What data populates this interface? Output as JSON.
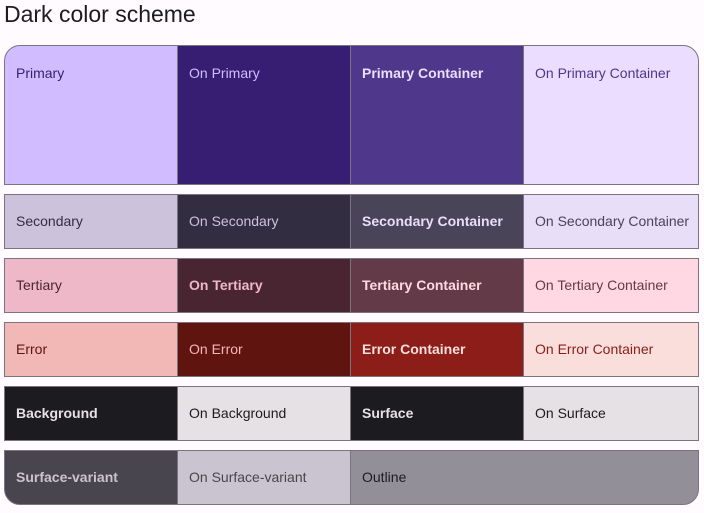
{
  "title": "Dark color scheme",
  "rows": [
    {
      "cells": [
        {
          "label": "Primary",
          "bg": "#d0bcff",
          "fg": "#381e72"
        },
        {
          "label": "On Primary",
          "bg": "#381e72",
          "fg": "#d0bcff"
        },
        {
          "label": "Primary Container",
          "bg": "#4f378b",
          "fg": "#eaddff"
        },
        {
          "label": "On Primary Container",
          "bg": "#eaddff",
          "fg": "#4f378b"
        }
      ]
    },
    {
      "cells": [
        {
          "label": "Secondary",
          "bg": "#ccc2dc",
          "fg": "#332d41"
        },
        {
          "label": "On Secondary",
          "bg": "#332d41",
          "fg": "#ccc2dc"
        },
        {
          "label": "Secondary Container",
          "bg": "#4a4458",
          "fg": "#e8def8"
        },
        {
          "label": "On Secondary Container",
          "bg": "#e8def8",
          "fg": "#4a4458"
        }
      ]
    },
    {
      "cells": [
        {
          "label": "Tertiary",
          "bg": "#efb8c8",
          "fg": "#492532"
        },
        {
          "label": "On Tertiary",
          "bg": "#492532",
          "fg": "#efb8c8"
        },
        {
          "label": "Tertiary Container",
          "bg": "#633b48",
          "fg": "#ffd8e4"
        },
        {
          "label": "On Tertiary Container",
          "bg": "#ffd8e4",
          "fg": "#633b48"
        }
      ]
    },
    {
      "cells": [
        {
          "label": "Error",
          "bg": "#f2b8b5",
          "fg": "#601410"
        },
        {
          "label": "On Error",
          "bg": "#601410",
          "fg": "#f2b8b5"
        },
        {
          "label": "Error Container",
          "bg": "#8c1d18",
          "fg": "#f9dedc"
        },
        {
          "label": "On Error Container",
          "bg": "#f9dedc",
          "fg": "#8c1d18"
        }
      ]
    },
    {
      "cells": [
        {
          "label": "Background",
          "bg": "#1c1b1f",
          "fg": "#e6e1e5"
        },
        {
          "label": "On Background",
          "bg": "#e6e1e5",
          "fg": "#1c1b1f"
        },
        {
          "label": "Surface",
          "bg": "#1c1b1f",
          "fg": "#e6e1e5"
        },
        {
          "label": "On Surface",
          "bg": "#e6e1e5",
          "fg": "#1c1b1f"
        }
      ]
    },
    {
      "cells": [
        {
          "label": "Surface-variant",
          "bg": "#49454f",
          "fg": "#cac4d0"
        },
        {
          "label": "On Surface-variant",
          "bg": "#cac4d0",
          "fg": "#49454f"
        },
        {
          "label": "Outline",
          "bg": "#938f99",
          "fg": "#1c1b1f"
        }
      ]
    }
  ]
}
